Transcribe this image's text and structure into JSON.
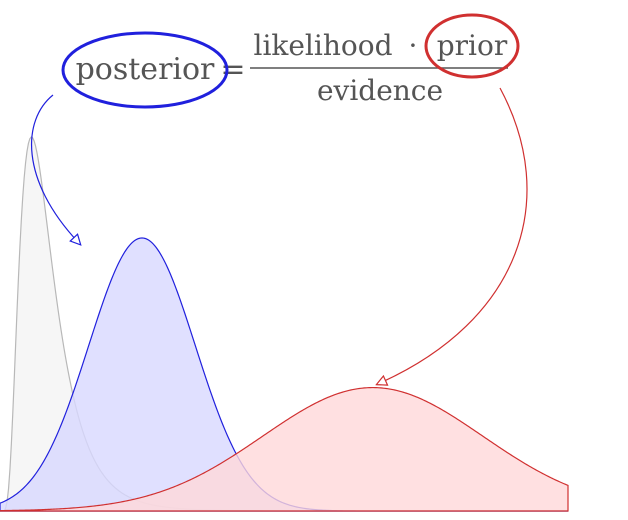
{
  "formula": {
    "lhs": "posterior",
    "equals": "=",
    "numerator_left": "likelihood",
    "dot": "·",
    "numerator_right": "prior",
    "denominator": "evidence"
  },
  "colors": {
    "text": "#555555",
    "posterior": "#2020dd",
    "prior": "#d03030",
    "likelihood_stroke": "#b8b8b8",
    "posterior_fill": "#d8d8ff",
    "prior_fill": "#ffd8da",
    "likelihood_fill": "#f4f4f4"
  },
  "curves": {
    "likelihood": {
      "mean": 0.6,
      "sd": 0.55,
      "peak": 1.0
    },
    "posterior": {
      "mean": 2.0,
      "sd": 0.75,
      "peak": 0.73
    },
    "prior": {
      "mean": 5.25,
      "sd": 1.55,
      "peak": 0.33
    }
  }
}
